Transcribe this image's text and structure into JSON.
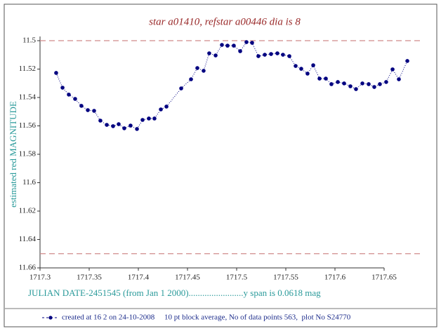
{
  "chart_data": {
    "type": "line",
    "title": "star a01410, refstar a00446  dia is  8",
    "ylabel": "estimated red MAGNITUDE",
    "xlabel": "JULIAN DATE-2451545 (from Jan 1 2000)........................y span is 0.0618 mag",
    "x": [
      1717.3164,
      1717.3229,
      1717.3293,
      1717.3357,
      1717.3421,
      1717.3486,
      1717.355,
      1717.3614,
      1717.3679,
      1717.3743,
      1717.38,
      1717.3857,
      1717.3921,
      1717.3986,
      1717.4043,
      1717.4107,
      1717.4164,
      1717.4229,
      1717.4286,
      1717.4436,
      1717.4536,
      1717.46,
      1717.4664,
      1717.4721,
      1717.4786,
      1717.485,
      1717.4907,
      1717.4971,
      1717.5036,
      1717.51,
      1717.5157,
      1717.5221,
      1717.5286,
      1717.535,
      1717.5414,
      1717.5471,
      1717.5536,
      1717.56,
      1717.5657,
      1717.5721,
      1717.5779,
      1717.5843,
      1717.5907,
      1717.5964,
      1717.6029,
      1717.6093,
      1717.6157,
      1717.6214,
      1717.6279,
      1717.6343,
      1717.64,
      1717.6457,
      1717.6521,
      1717.6586,
      1717.665,
      1717.6736
    ],
    "series": [
      {
        "name": "created at 16 2 on 24-10-2008     10 pt block average, No of data points 563,  plot No S24770",
        "color": "#000080",
        "values": [
          11.5227,
          11.5331,
          11.538,
          11.541,
          11.5459,
          11.5489,
          11.5494,
          11.5563,
          11.5593,
          11.5602,
          11.5588,
          11.5617,
          11.5598,
          11.5622,
          11.5558,
          11.5548,
          11.5548,
          11.5484,
          11.5464,
          11.5336,
          11.5272,
          11.5193,
          11.5212,
          11.5089,
          11.5104,
          11.503,
          11.5035,
          11.5035,
          11.5074,
          11.501,
          11.5015,
          11.5109,
          11.5099,
          11.5094,
          11.5089,
          11.5099,
          11.5109,
          11.5178,
          11.5198,
          11.5232,
          11.5173,
          11.5267,
          11.5267,
          11.5306,
          11.5291,
          11.5301,
          11.5321,
          11.5341,
          11.5301,
          11.5306,
          11.5326,
          11.5306,
          11.5291,
          11.5202,
          11.5272,
          11.5143
        ]
      }
    ],
    "xlim": [
      1717.3,
      1717.69
    ],
    "ylim": [
      11.66,
      11.5
    ],
    "xticks": [
      1717.3,
      1717.35,
      1717.4,
      1717.45,
      1717.5,
      1717.55,
      1717.6,
      1717.65
    ],
    "yticks": [
      11.5,
      11.52,
      11.54,
      11.56,
      11.58,
      11.6,
      11.62,
      11.64,
      11.66
    ],
    "hlines": [
      11.5,
      11.65
    ],
    "hline_color": "#d08a8a"
  }
}
